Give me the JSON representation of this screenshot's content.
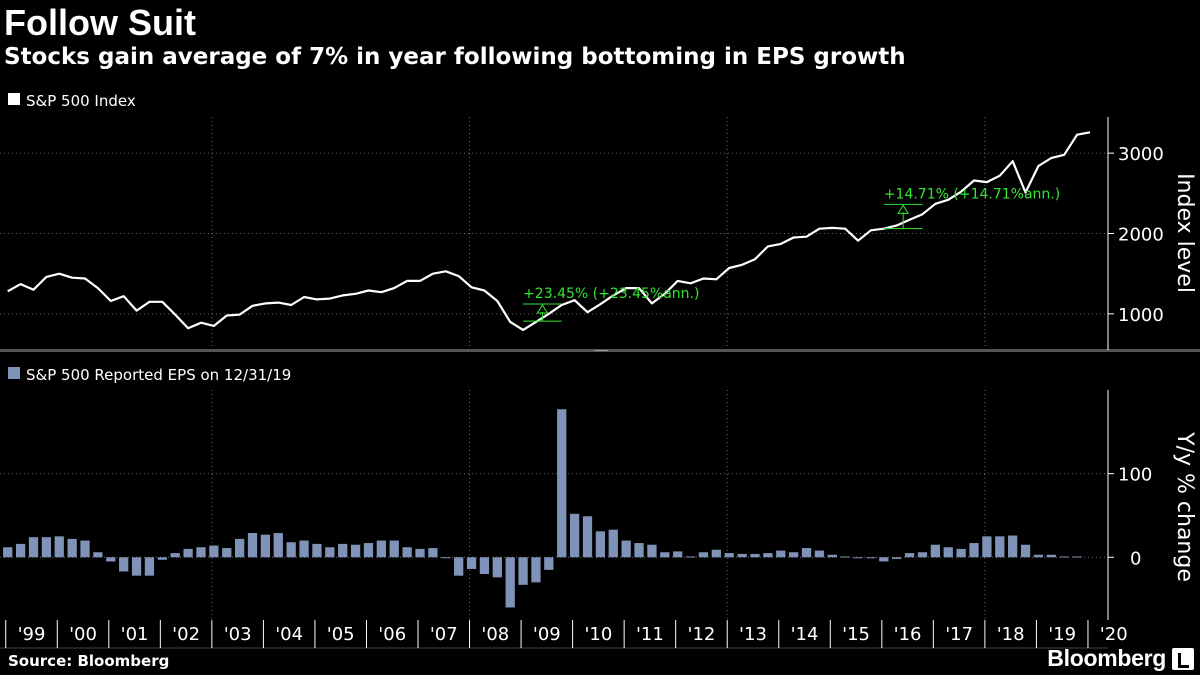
{
  "title": "Follow Suit",
  "subtitle": "Stocks gain average of 7% in year following bottoming in EPS growth",
  "footer": {
    "source": "Source: Bloomberg",
    "brand": "Bloomberg"
  },
  "colors": {
    "background": "#000000",
    "line": "#ffffff",
    "bar": "#7f93b8",
    "annotation": "#33e633",
    "grid": "#6a6a6a"
  },
  "chart_data": [
    {
      "type": "line",
      "legend": "S&P 500 Index",
      "ylabel": "Index level",
      "ylim": [
        550,
        3450
      ],
      "yticks": [
        1000,
        2000,
        3000
      ],
      "x": [
        1999.0,
        1999.25,
        1999.5,
        1999.75,
        2000.0,
        2000.25,
        2000.5,
        2000.75,
        2001.0,
        2001.25,
        2001.5,
        2001.75,
        2002.0,
        2002.25,
        2002.5,
        2002.75,
        2003.0,
        2003.25,
        2003.5,
        2003.75,
        2004.0,
        2004.25,
        2004.5,
        2004.75,
        2005.0,
        2005.25,
        2005.5,
        2005.75,
        2006.0,
        2006.25,
        2006.5,
        2006.75,
        2007.0,
        2007.25,
        2007.5,
        2007.75,
        2008.0,
        2008.25,
        2008.5,
        2008.75,
        2009.0,
        2009.25,
        2009.5,
        2009.75,
        2010.0,
        2010.25,
        2010.5,
        2010.75,
        2011.0,
        2011.25,
        2011.5,
        2011.75,
        2012.0,
        2012.25,
        2012.5,
        2012.75,
        2013.0,
        2013.25,
        2013.5,
        2013.75,
        2014.0,
        2014.25,
        2014.5,
        2014.75,
        2015.0,
        2015.25,
        2015.5,
        2015.75,
        2016.0,
        2016.25,
        2016.5,
        2016.75,
        2017.0,
        2017.25,
        2017.5,
        2017.75,
        2018.0,
        2018.25,
        2018.5,
        2018.75,
        2019.0,
        2019.25,
        2019.5,
        2019.75,
        2020.0
      ],
      "values": [
        1280,
        1370,
        1300,
        1460,
        1500,
        1450,
        1440,
        1320,
        1160,
        1220,
        1040,
        1150,
        1150,
        990,
        820,
        890,
        850,
        980,
        990,
        1100,
        1130,
        1140,
        1110,
        1210,
        1180,
        1190,
        1230,
        1250,
        1290,
        1270,
        1320,
        1410,
        1410,
        1500,
        1530,
        1470,
        1330,
        1290,
        1160,
        900,
        800,
        900,
        1000,
        1110,
        1170,
        1020,
        1120,
        1230,
        1320,
        1320,
        1130,
        1250,
        1410,
        1380,
        1440,
        1430,
        1570,
        1610,
        1680,
        1840,
        1870,
        1950,
        1960,
        2060,
        2070,
        2060,
        1910,
        2040,
        2060,
        2100,
        2170,
        2240,
        2370,
        2420,
        2520,
        2660,
        2640,
        2720,
        2900,
        2510,
        2840,
        2940,
        2980,
        3230,
        3260
      ],
      "annotations": [
        {
          "label": "+23.45% (+23.45%ann.)",
          "x_start": 2009.0,
          "x_end": 2009.75,
          "y_start": 910,
          "y_end": 1123
        },
        {
          "label": "+14.71% (+14.71%ann.)",
          "x_start": 2016.0,
          "x_end": 2016.75,
          "y_start": 2060,
          "y_end": 2363
        }
      ]
    },
    {
      "type": "bar",
      "legend": "S&P 500 Reported EPS on 12/31/19",
      "ylabel": "Y/y % change",
      "ylim": [
        -75,
        200
      ],
      "yticks": [
        0,
        100
      ],
      "x": [
        1999.0,
        1999.25,
        1999.5,
        1999.75,
        2000.0,
        2000.25,
        2000.5,
        2000.75,
        2001.0,
        2001.25,
        2001.5,
        2001.75,
        2002.0,
        2002.25,
        2002.5,
        2002.75,
        2003.0,
        2003.25,
        2003.5,
        2003.75,
        2004.0,
        2004.25,
        2004.5,
        2004.75,
        2005.0,
        2005.25,
        2005.5,
        2005.75,
        2006.0,
        2006.25,
        2006.5,
        2006.75,
        2007.0,
        2007.25,
        2007.5,
        2007.75,
        2008.0,
        2008.25,
        2008.5,
        2008.75,
        2009.0,
        2009.25,
        2009.5,
        2009.75,
        2010.0,
        2010.25,
        2010.5,
        2010.75,
        2011.0,
        2011.25,
        2011.5,
        2011.75,
        2012.0,
        2012.25,
        2012.5,
        2012.75,
        2013.0,
        2013.25,
        2013.5,
        2013.75,
        2014.0,
        2014.25,
        2014.5,
        2014.75,
        2015.0,
        2015.25,
        2015.5,
        2015.75,
        2016.0,
        2016.25,
        2016.5,
        2016.75,
        2017.0,
        2017.25,
        2017.5,
        2017.75,
        2018.0,
        2018.25,
        2018.5,
        2018.75,
        2019.0,
        2019.25,
        2019.5,
        2019.75
      ],
      "values": [
        12,
        16,
        24,
        24,
        25,
        22,
        20,
        6,
        -5,
        -17,
        -22,
        -22,
        -3,
        5,
        10,
        12,
        14,
        11,
        22,
        29,
        27,
        29,
        18,
        20,
        16,
        12,
        16,
        15,
        17,
        20,
        20,
        12,
        10,
        11,
        -1,
        -22,
        -14,
        -20,
        -24,
        -60,
        -33,
        -30,
        -15,
        177,
        52,
        49,
        31,
        33,
        20,
        17,
        15,
        6,
        7,
        1,
        6,
        9,
        5,
        4,
        4,
        5,
        8,
        6,
        11,
        8,
        3,
        1,
        -1,
        -1,
        -5,
        -2,
        5,
        6,
        15,
        12,
        10,
        17,
        25,
        25,
        26,
        15,
        3,
        3,
        1,
        1
      ]
    }
  ],
  "x_ticks": [
    "'99",
    "'00",
    "'01",
    "'02",
    "'03",
    "'04",
    "'05",
    "'06",
    "'07",
    "'08",
    "'09",
    "'10",
    "'11",
    "'12",
    "'13",
    "'14",
    "'15",
    "'16",
    "'17",
    "'18",
    "'19",
    "'20"
  ]
}
